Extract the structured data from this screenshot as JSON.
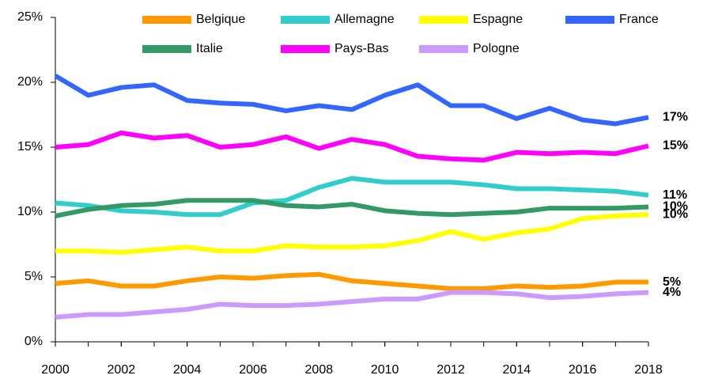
{
  "chart_data": {
    "type": "line",
    "x": [
      2000,
      2001,
      2002,
      2003,
      2004,
      2005,
      2006,
      2007,
      2008,
      2009,
      2010,
      2011,
      2012,
      2013,
      2014,
      2015,
      2016,
      2017,
      2018
    ],
    "xlim": [
      2000,
      2018
    ],
    "xticks": [
      2000,
      2002,
      2004,
      2006,
      2008,
      2010,
      2012,
      2014,
      2016,
      2018
    ],
    "ylim": [
      0,
      25
    ],
    "yticks": [
      {
        "value": 0,
        "label": "0%"
      },
      {
        "value": 5,
        "label": "5%"
      },
      {
        "value": 10,
        "label": "10%"
      },
      {
        "value": 15,
        "label": "15%"
      },
      {
        "value": 20,
        "label": "20%"
      },
      {
        "value": 25,
        "label": "25%"
      }
    ],
    "grid": false,
    "legend": "top",
    "series": [
      {
        "name": "Belgique",
        "color": "#ff9900",
        "end_label": "5%",
        "values": [
          4.5,
          4.7,
          4.3,
          4.3,
          4.7,
          5.0,
          4.9,
          5.1,
          5.2,
          4.7,
          4.5,
          4.3,
          4.1,
          4.1,
          4.3,
          4.2,
          4.3,
          4.6,
          4.6
        ]
      },
      {
        "name": "Allemagne",
        "color": "#33cccc",
        "end_label": "11%",
        "values": [
          10.7,
          10.5,
          10.1,
          10.0,
          9.8,
          9.8,
          10.7,
          10.9,
          11.9,
          12.6,
          12.3,
          12.3,
          12.3,
          12.1,
          11.8,
          11.8,
          11.7,
          11.6,
          11.3
        ]
      },
      {
        "name": "Espagne",
        "color": "#ffff00",
        "end_label": "10%",
        "values": [
          7.0,
          7.0,
          6.9,
          7.1,
          7.3,
          7.0,
          7.0,
          7.4,
          7.3,
          7.3,
          7.4,
          7.8,
          8.5,
          7.9,
          8.4,
          8.7,
          9.5,
          9.7,
          9.8
        ]
      },
      {
        "name": "France",
        "color": "#3366ff",
        "end_label": "17%",
        "values": [
          20.5,
          19.0,
          19.6,
          19.8,
          18.6,
          18.4,
          18.3,
          17.8,
          18.2,
          17.9,
          19.0,
          19.8,
          18.2,
          18.2,
          17.2,
          18.0,
          17.1,
          16.8,
          17.3
        ]
      },
      {
        "name": "Italie",
        "color": "#339966",
        "end_label": "10%",
        "values": [
          9.7,
          10.2,
          10.5,
          10.6,
          10.9,
          10.9,
          10.9,
          10.5,
          10.4,
          10.6,
          10.1,
          9.9,
          9.8,
          9.9,
          10.0,
          10.3,
          10.3,
          10.3,
          10.4
        ]
      },
      {
        "name": "Pays-Bas",
        "color": "#ff00ff",
        "end_label": "15%",
        "values": [
          15.0,
          15.2,
          16.1,
          15.7,
          15.9,
          15.0,
          15.2,
          15.8,
          14.9,
          15.6,
          15.2,
          14.3,
          14.1,
          14.0,
          14.6,
          14.5,
          14.6,
          14.5,
          15.1
        ]
      },
      {
        "name": "Pologne",
        "color": "#cc99ff",
        "end_label": "4%",
        "values": [
          1.9,
          2.1,
          2.1,
          2.3,
          2.5,
          2.9,
          2.8,
          2.8,
          2.9,
          3.1,
          3.3,
          3.3,
          3.8,
          3.8,
          3.7,
          3.4,
          3.5,
          3.7,
          3.8
        ]
      }
    ]
  }
}
